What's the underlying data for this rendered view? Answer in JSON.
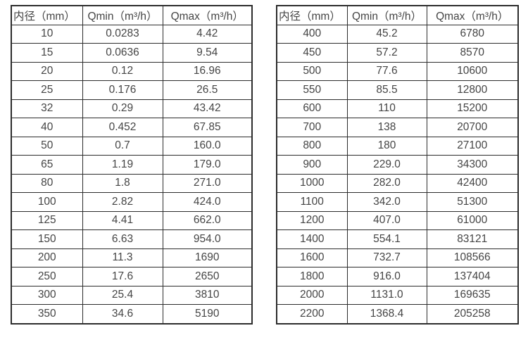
{
  "page": {
    "background": "#ffffff",
    "text_color": "#454545",
    "border_color": "#2c2c2c"
  },
  "tables": [
    {
      "name": "flow-range-table-small-diameters",
      "headers": [
        "内径（mm）",
        "Qmin（m³/h）",
        "Qmax（m³/h）"
      ],
      "rows": [
        [
          "10",
          "0.0283",
          "4.42"
        ],
        [
          "15",
          "0.0636",
          "9.54"
        ],
        [
          "20",
          "0.12",
          "16.96"
        ],
        [
          "25",
          "0.176",
          "26.5"
        ],
        [
          "32",
          "0.29",
          "43.42"
        ],
        [
          "40",
          "0.452",
          "67.85"
        ],
        [
          "50",
          "0.7",
          "160.0"
        ],
        [
          "65",
          "1.19",
          "179.0"
        ],
        [
          "80",
          "1.8",
          "271.0"
        ],
        [
          "100",
          "2.82",
          "424.0"
        ],
        [
          "125",
          "4.41",
          "662.0"
        ],
        [
          "150",
          "6.63",
          "954.0"
        ],
        [
          "200",
          "11.3",
          "1690"
        ],
        [
          "250",
          "17.6",
          "2650"
        ],
        [
          "300",
          "25.4",
          "3810"
        ],
        [
          "350",
          "34.6",
          "5190"
        ]
      ]
    },
    {
      "name": "flow-range-table-large-diameters",
      "headers": [
        "内径（mm）",
        "Qmin（m³/h）",
        "Qmax（m³/h）"
      ],
      "rows": [
        [
          "400",
          "45.2",
          "6780"
        ],
        [
          "450",
          "57.2",
          "8570"
        ],
        [
          "500",
          "77.6",
          "10600"
        ],
        [
          "550",
          "85.5",
          "12800"
        ],
        [
          "600",
          "110",
          "15200"
        ],
        [
          "700",
          "138",
          "20700"
        ],
        [
          "800",
          "180",
          "27100"
        ],
        [
          "900",
          "229.0",
          "34300"
        ],
        [
          "1000",
          "282.0",
          "42400"
        ],
        [
          "1100",
          "342.0",
          "51300"
        ],
        [
          "1200",
          "407.0",
          "61000"
        ],
        [
          "1400",
          "554.1",
          "83121"
        ],
        [
          "1600",
          "732.7",
          "108566"
        ],
        [
          "1800",
          "916.0",
          "137404"
        ],
        [
          "2000",
          "1131.0",
          "169635"
        ],
        [
          "2200",
          "1368.4",
          "205258"
        ]
      ]
    }
  ]
}
